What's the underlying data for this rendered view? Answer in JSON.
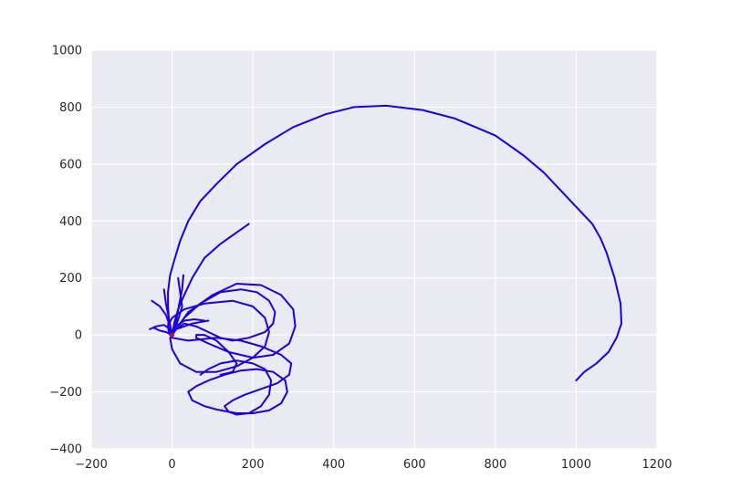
{
  "chart_data": {
    "type": "line",
    "title": "",
    "xlabel": "",
    "ylabel": "",
    "xlim": [
      -200,
      1200
    ],
    "ylim": [
      -400,
      1000
    ],
    "x_ticks": [
      -200,
      0,
      200,
      400,
      600,
      800,
      1000,
      1200
    ],
    "y_ticks": [
      -400,
      -200,
      0,
      200,
      400,
      600,
      800,
      1000
    ],
    "x_tick_labels": [
      "−200",
      "0",
      "200",
      "400",
      "600",
      "800",
      "1000",
      "1200"
    ],
    "y_tick_labels": [
      "−400",
      "−200",
      "0",
      "200",
      "400",
      "600",
      "800",
      "1000"
    ],
    "grid": true,
    "background_color": "#EAEAF2",
    "grid_color": "#FFFFFF",
    "series": [
      {
        "color": "#1A00E0",
        "x": [
          1000,
          1020,
          1050,
          1080,
          1100,
          1112,
          1110,
          1095,
          1075,
          1060,
          1040,
          1000,
          960,
          920,
          870,
          800,
          700,
          620,
          530,
          450,
          380,
          300,
          230,
          160,
          110,
          70,
          40,
          20,
          5,
          -5,
          -10,
          -10,
          -8,
          -10,
          -8,
          -5,
          0
        ],
        "y": [
          -160,
          -130,
          -100,
          -60,
          -10,
          40,
          110,
          200,
          290,
          340,
          390,
          450,
          510,
          570,
          630,
          700,
          760,
          790,
          805,
          800,
          775,
          730,
          670,
          600,
          530,
          470,
          400,
          330,
          260,
          210,
          150,
          100,
          60,
          30,
          10,
          0,
          0
        ]
      },
      {
        "color": "#1A00E0",
        "x": [
          190,
          160,
          120,
          80,
          50,
          30,
          15,
          5,
          0
        ],
        "y": [
          390,
          360,
          320,
          270,
          200,
          140,
          90,
          40,
          0
        ]
      },
      {
        "color": "#1A00E0",
        "x": [
          0,
          30,
          70,
          120,
          170,
          210,
          240,
          255,
          250,
          230,
          190,
          150,
          120,
          90,
          60,
          30,
          10
        ],
        "y": [
          0,
          60,
          110,
          150,
          160,
          150,
          120,
          80,
          40,
          10,
          -10,
          -20,
          -10,
          10,
          30,
          40,
          20
        ]
      },
      {
        "color": "#1A00E0",
        "x": [
          0,
          40,
          100,
          160,
          220,
          270,
          300,
          305,
          290,
          250,
          200,
          140,
          90,
          60,
          60,
          80,
          110,
          140,
          160,
          150,
          120
        ],
        "y": [
          0,
          80,
          140,
          180,
          175,
          140,
          90,
          30,
          -30,
          -70,
          -80,
          -60,
          -30,
          -10,
          0,
          0,
          -20,
          -60,
          -100,
          -130,
          -140
        ]
      },
      {
        "color": "#1A00E0",
        "x": [
          -5,
          -10,
          0,
          30,
          80,
          150,
          200,
          230,
          240,
          230,
          200,
          160,
          110,
          60,
          20,
          0,
          -5,
          10,
          50,
          90
        ],
        "y": [
          0,
          30,
          60,
          90,
          110,
          120,
          100,
          60,
          10,
          -40,
          -80,
          -110,
          -130,
          -130,
          -100,
          -50,
          -10,
          20,
          40,
          50
        ]
      },
      {
        "color": "#1A00E0",
        "x": [
          0,
          40,
          110,
          170,
          220,
          270,
          295,
          290,
          260,
          220,
          180,
          150,
          130,
          140,
          160,
          190,
          220,
          240,
          245,
          230,
          200,
          160,
          120,
          90,
          70
        ],
        "y": [
          -10,
          -20,
          -10,
          -20,
          -40,
          -70,
          -100,
          -140,
          -170,
          -190,
          -210,
          -230,
          -250,
          -270,
          -280,
          -275,
          -250,
          -210,
          -160,
          -120,
          -100,
          -90,
          -100,
          -120,
          -140
        ]
      },
      {
        "color": "#1A00E0",
        "x": [
          160,
          200,
          240,
          270,
          285,
          280,
          250,
          210,
          170,
          130,
          90,
          60,
          40,
          50,
          80,
          110,
          140,
          160
        ],
        "y": [
          -275,
          -275,
          -265,
          -240,
          -200,
          -160,
          -130,
          -120,
          -125,
          -140,
          -160,
          -180,
          -200,
          -230,
          -250,
          -262,
          -270,
          -275
        ]
      },
      {
        "color": "#1A00E0",
        "x": [
          -50,
          -30,
          -15,
          -5,
          0
        ],
        "y": [
          120,
          100,
          70,
          30,
          0
        ]
      },
      {
        "color": "#1A00E0",
        "x": [
          -55,
          -40,
          -20,
          -5,
          0
        ],
        "y": [
          20,
          30,
          35,
          20,
          0
        ]
      },
      {
        "color": "#1A00E0",
        "x": [
          -45,
          -30,
          -15,
          0
        ],
        "y": [
          25,
          15,
          10,
          0
        ]
      },
      {
        "color": "#1A00E0",
        "x": [
          28,
          25,
          18,
          10,
          0
        ],
        "y": [
          210,
          160,
          110,
          50,
          0
        ]
      },
      {
        "color": "#1A00E0",
        "x": [
          -20,
          -15,
          -8,
          0
        ],
        "y": [
          160,
          110,
          60,
          0
        ]
      },
      {
        "color": "#1A00E0",
        "x": [
          80,
          55,
          30,
          10,
          0
        ],
        "y": [
          50,
          55,
          50,
          30,
          0
        ]
      },
      {
        "color": "#1A00E0",
        "x": [
          15,
          20,
          25,
          12,
          0
        ],
        "y": [
          200,
          150,
          100,
          40,
          0
        ]
      }
    ],
    "markers": [
      {
        "x": 0,
        "y": 0,
        "color": "#C0103A"
      }
    ]
  }
}
